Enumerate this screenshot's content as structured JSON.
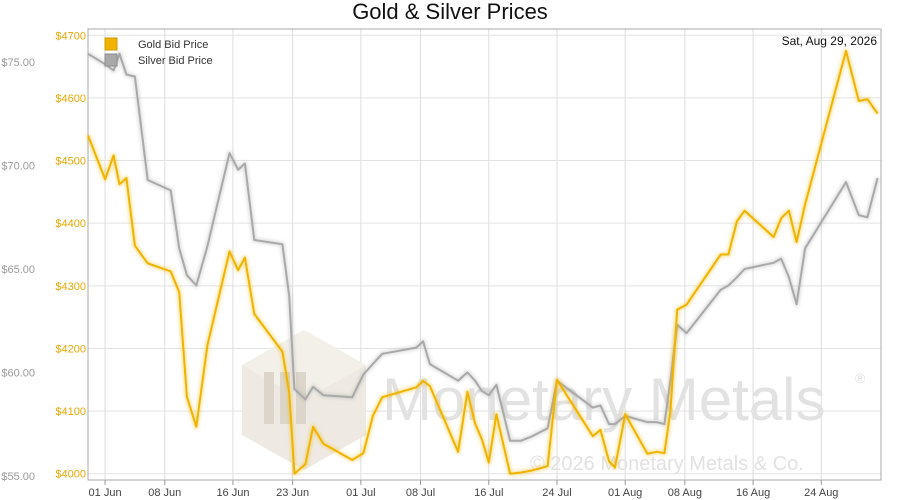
{
  "chart_data": {
    "type": "line",
    "title": "Gold & Silver Prices",
    "date_label": "Sat, Aug 29, 2026",
    "x_tick_labels": [
      "01 Jun",
      "08 Jun",
      "16 Jun",
      "23 Jun",
      "01 Jul",
      "08 Jul",
      "16 Jul",
      "24 Jul",
      "01 Aug",
      "08 Aug",
      "16 Aug",
      "24 Aug"
    ],
    "x_tick_days": [
      0,
      7,
      15,
      22,
      30,
      37,
      45,
      53,
      61,
      68,
      76,
      84
    ],
    "xlim": [
      -2,
      91
    ],
    "y_left": {
      "ylim": [
        3990,
        4710
      ],
      "ticks": [
        4000,
        4100,
        4200,
        4300,
        4400,
        4500,
        4600,
        4700
      ],
      "tick_labels": [
        "$4000",
        "$4100",
        "$4200",
        "$4300",
        "$4400",
        "$4500",
        "$4600",
        "$4700"
      ],
      "color": "#f0b400"
    },
    "y_right": {
      "ylim": [
        54.8,
        76.6
      ],
      "ticks": [
        55,
        60,
        65,
        70,
        75
      ],
      "tick_labels": [
        "$55.00",
        "$60.00",
        "$65.00",
        "$70.00",
        "$75.00"
      ],
      "color": "#a9a9a9"
    },
    "series": [
      {
        "name": "Gold Bid Price",
        "axis": "left",
        "color": "#f0b400",
        "x": [
          -2,
          0,
          1,
          1.7,
          2.5,
          3.5,
          5,
          7.7,
          8.7,
          9.6,
          10.7,
          12,
          14.6,
          15.6,
          16.4,
          17.5,
          20.8,
          21.6,
          22.2,
          23.5,
          24.4,
          25.6,
          29,
          30.3,
          31.4,
          32.5,
          36.5,
          37.3,
          38.1,
          41.4,
          42.5,
          43.4,
          44.2,
          45,
          45.9,
          47.5,
          48.8,
          50,
          51.9,
          53,
          57.2,
          58.1,
          59.1,
          59.8,
          61,
          63.6,
          64.7,
          65.6,
          66.3,
          67.1,
          68.2,
          72.2,
          73.1,
          74.1,
          75,
          78.4,
          79.3,
          80.2,
          81.1,
          82.1,
          86.9,
          88.4,
          89.4,
          90.6
        ],
        "y": [
          4540,
          4470,
          4508,
          4462,
          4472,
          4364,
          4336,
          4323,
          4290,
          4123,
          4075,
          4205,
          4355,
          4325,
          4345,
          4255,
          4195,
          4130,
          4000,
          4015,
          4075,
          4048,
          4022,
          4033,
          4092,
          4122,
          4138,
          4148,
          4140,
          4035,
          4131,
          4080,
          4055,
          4018,
          4095,
          4000,
          4002,
          4005,
          4012,
          4150,
          4060,
          4070,
          4020,
          4010,
          4095,
          4032,
          4035,
          4033,
          4100,
          4262,
          4270,
          4350,
          4350,
          4403,
          4420,
          4378,
          4408,
          4420,
          4370,
          4430,
          4675,
          4595,
          4598,
          4575
        ]
      },
      {
        "name": "Silver Bid Price",
        "axis": "right",
        "color": "#a9a9a9",
        "x": [
          -2,
          0,
          1,
          1.7,
          2.5,
          3.5,
          5,
          7.7,
          8.7,
          9.6,
          10.7,
          12,
          14.6,
          15.6,
          16.4,
          17.5,
          20.8,
          21.6,
          22.2,
          23.5,
          24.4,
          25.6,
          29,
          30.3,
          31.4,
          32.5,
          36.5,
          37.3,
          38.1,
          41.4,
          42.5,
          43.4,
          44.2,
          45,
          45.9,
          47.5,
          48.8,
          50,
          51.9,
          53,
          57.2,
          58.1,
          59.1,
          59.8,
          61,
          63.6,
          64.7,
          65.6,
          66.3,
          67.1,
          68.2,
          72.2,
          73.1,
          74.1,
          75,
          78.4,
          79.3,
          80.2,
          81.1,
          82.1,
          86.9,
          88.4,
          89.4,
          90.6
        ],
        "y": [
          75.4,
          74.9,
          74.6,
          75.4,
          74.4,
          74.3,
          69.3,
          68.8,
          66.0,
          64.7,
          64.2,
          66.1,
          70.6,
          69.8,
          70.1,
          66.4,
          66.2,
          63.7,
          59.2,
          58.7,
          59.3,
          58.9,
          58.8,
          59.9,
          60.4,
          60.9,
          61.2,
          61.5,
          60.4,
          59.6,
          60.0,
          59.6,
          59.1,
          58.9,
          59.4,
          56.7,
          56.7,
          56.9,
          57.3,
          59.6,
          58.3,
          58.4,
          57.5,
          57.5,
          57.9,
          57.6,
          57.6,
          57.5,
          59.6,
          62.3,
          61.9,
          64.0,
          64.2,
          64.6,
          65.0,
          65.3,
          65.5,
          64.6,
          63.3,
          66.0,
          69.2,
          67.6,
          67.5,
          69.4
        ]
      }
    ],
    "grid": true,
    "legend": {
      "placement": "top-left"
    }
  },
  "watermark": {
    "brand": "Monetary Metals",
    "registered_mark": "®",
    "copyright": "© 2026 Monetary Metals & Co."
  }
}
